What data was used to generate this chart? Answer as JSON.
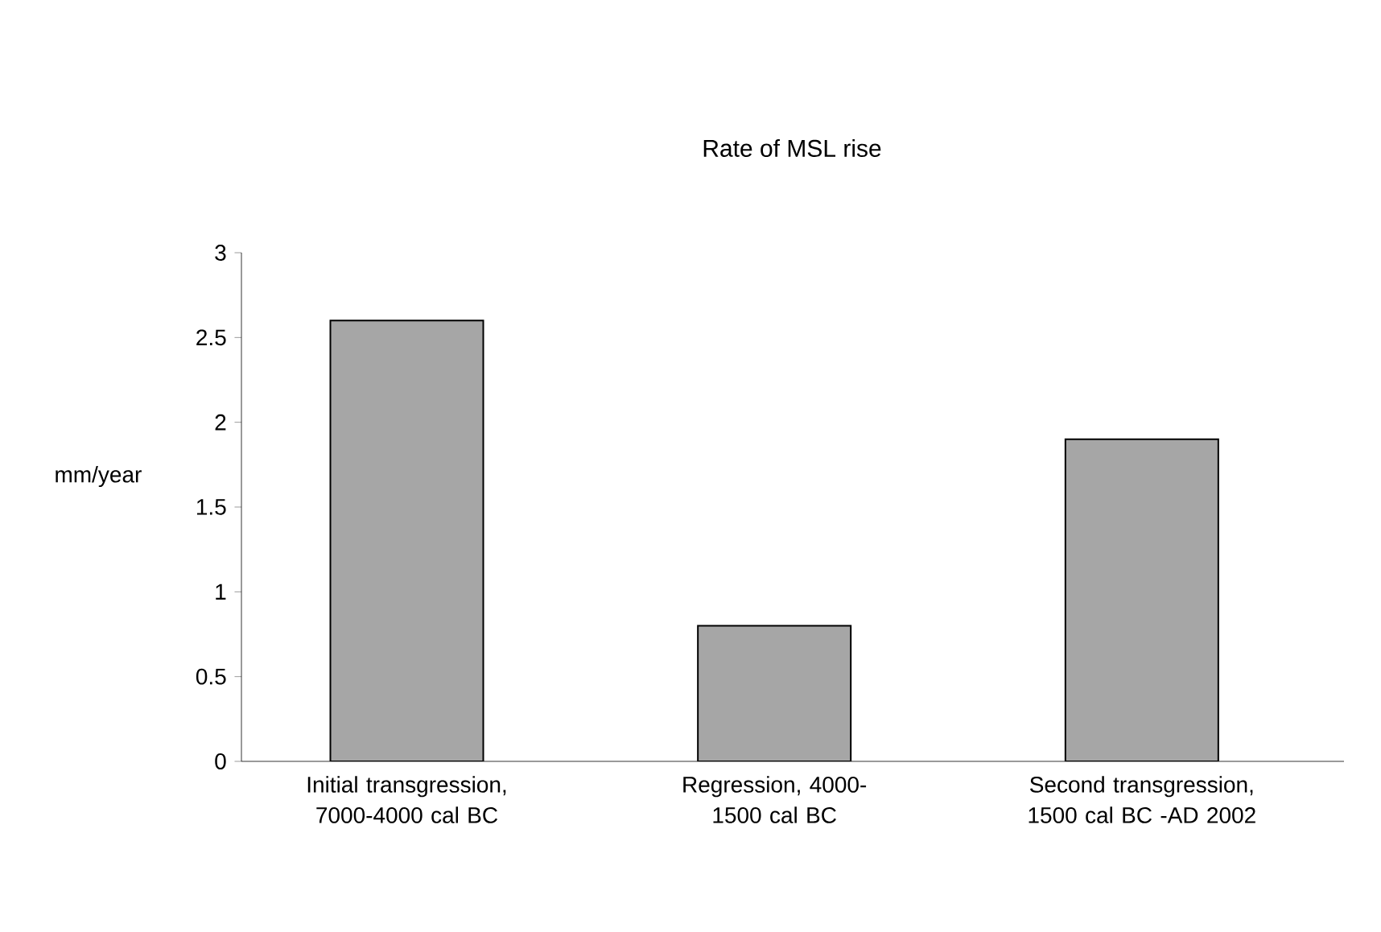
{
  "chart_data": {
    "type": "bar",
    "title": "Rate of MSL rise",
    "ylabel": "mm/year",
    "categories": [
      "Initial transgression, 7000-4000 cal BC",
      "Regression, 4000-1500 cal BC",
      "Second transgression, 1500 cal BC -AD 2002"
    ],
    "values": [
      2.6,
      0.8,
      1.9
    ],
    "color": "#a6a6a6",
    "ylim": [
      0,
      3
    ],
    "yticks": [
      0,
      0.5,
      1,
      1.5,
      2,
      2.5,
      3
    ],
    "grid": false
  }
}
